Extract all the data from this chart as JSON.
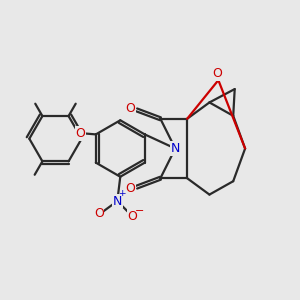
{
  "bg_color": "#e8e8e8",
  "bond_color": "#2a2a2a",
  "bond_width": 1.6,
  "O_color": "#cc0000",
  "N_color": "#0000cc",
  "figsize": [
    3.0,
    3.0
  ],
  "dpi": 100,
  "xlim": [
    0,
    10
  ],
  "ylim": [
    0,
    10
  ]
}
